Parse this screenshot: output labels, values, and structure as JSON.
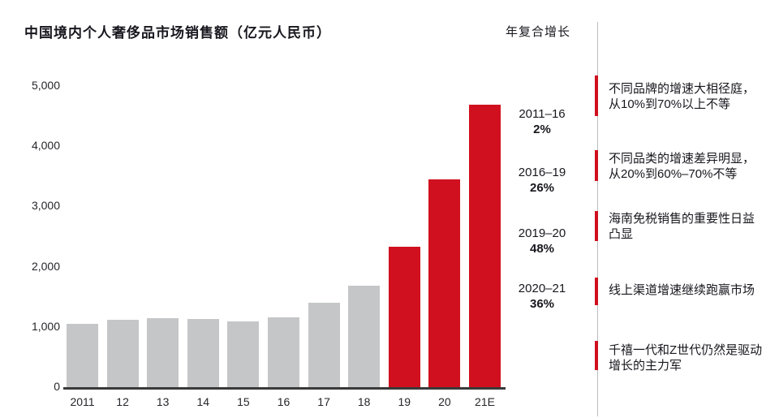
{
  "header": {
    "title": "中国境内个人奢侈品市场销售额（亿元人民币）",
    "cagr_column_title": "年复合增长"
  },
  "chart_data": {
    "type": "bar",
    "title": "中国境内个人奢侈品市场销售额（亿元人民币）",
    "unit": "亿元人民币",
    "categories": [
      "2011",
      "12",
      "13",
      "14",
      "15",
      "16",
      "17",
      "18",
      "19",
      "20",
      "21E"
    ],
    "values": [
      1060,
      1130,
      1160,
      1140,
      1100,
      1170,
      1420,
      1700,
      2340,
      3460,
      4710
    ],
    "highlighted_categories": [
      "19",
      "20",
      "21E"
    ],
    "highlight_from_index": 8,
    "xlabel": "",
    "ylabel": "",
    "ylim": [
      0,
      5000
    ],
    "yticks": [
      0,
      1000,
      2000,
      3000,
      4000,
      5000
    ],
    "ytick_labels": [
      "0",
      "1,000",
      "2,000",
      "3,000",
      "4,000",
      "5,000"
    ],
    "grid": false,
    "legend": false
  },
  "cagr_items": [
    {
      "period": "2011–16",
      "rate": "2%"
    },
    {
      "period": "2016–19",
      "rate": "26%"
    },
    {
      "period": "2019–20",
      "rate": "48%"
    },
    {
      "period": "2020–21",
      "rate": "36%"
    }
  ],
  "annotations": [
    {
      "lines": [
        "不同品牌的增速大相径庭，",
        "从10%到70%以上不等"
      ]
    },
    {
      "lines": [
        "不同品类的增速差异明显，",
        "从20%到60%–70%不等"
      ]
    },
    {
      "lines": [
        "海南免税销售的重要性日益",
        "凸显"
      ]
    },
    {
      "lines": [
        "线上渠道增速继续跑赢市场"
      ]
    },
    {
      "lines": [
        "千禧一代和Z世代仍然是驱动",
        "增长的主力军"
      ]
    }
  ],
  "colors": {
    "bar_gray": "#c5c6c8",
    "highlight_red": "#d0101f",
    "axis_dark": "#3a3a3a",
    "divider_gray": "#bcbcc0",
    "text_dark": "#17171e"
  }
}
